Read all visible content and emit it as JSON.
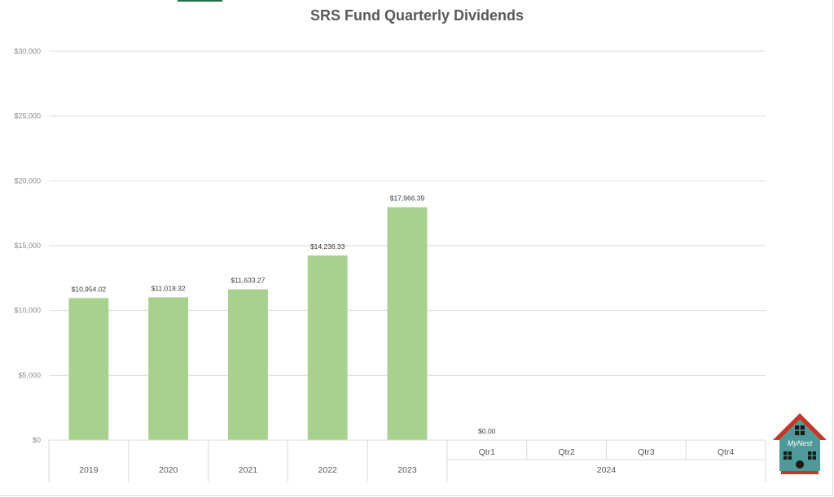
{
  "chart_data": {
    "type": "bar",
    "title": "SRS Fund Quarterly Dividends",
    "xlabel": "",
    "ylabel": "",
    "ylim": [
      0,
      30000
    ],
    "y_ticks": [
      {
        "value": 0,
        "label": "$0"
      },
      {
        "value": 5000,
        "label": "$5,000"
      },
      {
        "value": 10000,
        "label": "$10,000"
      },
      {
        "value": 15000,
        "label": "$15,000"
      },
      {
        "value": 20000,
        "label": "$20,000"
      },
      {
        "value": 25000,
        "label": "$25,000"
      },
      {
        "value": 30000,
        "label": "$30,000"
      }
    ],
    "categories": [
      {
        "label": "2019",
        "group": "",
        "value": 10954.02,
        "data_label": "$10,954.02"
      },
      {
        "label": "2020",
        "group": "",
        "value": 11018.32,
        "data_label": "$11,018.32"
      },
      {
        "label": "2021",
        "group": "",
        "value": 11633.27,
        "data_label": "$11,633.27"
      },
      {
        "label": "2022",
        "group": "",
        "value": 14236.33,
        "data_label": "$14,236.33"
      },
      {
        "label": "2023",
        "group": "",
        "value": 17966.39,
        "data_label": "$17,966.39"
      },
      {
        "label": "Qtr1",
        "group": "2024",
        "value": 0,
        "data_label": "$0.00"
      },
      {
        "label": "Qtr2",
        "group": "2024",
        "value": null,
        "data_label": ""
      },
      {
        "label": "Qtr3",
        "group": "2024",
        "value": null,
        "data_label": ""
      },
      {
        "label": "Qtr4",
        "group": "2024",
        "value": null,
        "data_label": ""
      }
    ],
    "groups": [
      {
        "label": "2024",
        "start": 5,
        "end": 8
      }
    ],
    "grid": true,
    "legend": "none",
    "colors": {
      "bar": "#a9d18e",
      "grid": "#d9d9d9",
      "tick_text": "#8c8c8c",
      "category_text": "#595959",
      "data_label_text": "#404040",
      "title_text": "#595959"
    }
  },
  "logo": {
    "text": "MyNest",
    "colors": {
      "roof": "#c0392b",
      "body": "#4e9a9a"
    }
  }
}
